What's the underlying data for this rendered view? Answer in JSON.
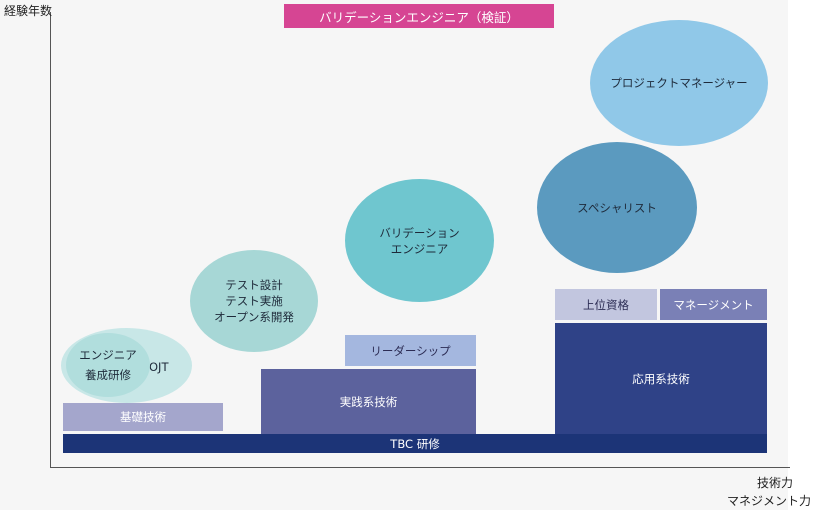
{
  "axes": {
    "y_label": "経験年数",
    "x_label_line1": "技術力",
    "x_label_line2": "マネジメント力"
  },
  "title": "バリデーションエンジニア（検証）",
  "bars": {
    "tbc": "TBC 研修",
    "kiso": "基礎技術",
    "jissen": "実践系技術",
    "leadership": "リーダーシップ",
    "ouyou": "応用系技術",
    "joui": "上位資格",
    "management": "マネージメント"
  },
  "ellipses": {
    "engineer_line1": "エンジニア",
    "engineer_line2": "養成研修",
    "ojt": "OJT",
    "test_line1": "テスト設計",
    "test_line2": "テスト実施",
    "test_line3": "オープン系開発",
    "validation_line1": "バリデーション",
    "validation_line2": "エンジニア",
    "specialist": "スペシャリスト",
    "pm": "プロジェクトマネージャー"
  },
  "colors": {
    "title": "#d64593",
    "navy": "#1c3477",
    "indigo": "#2f4287",
    "slate": "#5c629d",
    "lavender": "#a4a6cc",
    "periwinkle": "#a4b7df",
    "light_lavender": "#c2c6df",
    "muted_indigo": "#7a80b6",
    "teal_light": "#a7d7d6",
    "teal_mid": "#6fc6cf",
    "steel_blue": "#5b9abf",
    "sky_blue": "#90c8e8"
  }
}
